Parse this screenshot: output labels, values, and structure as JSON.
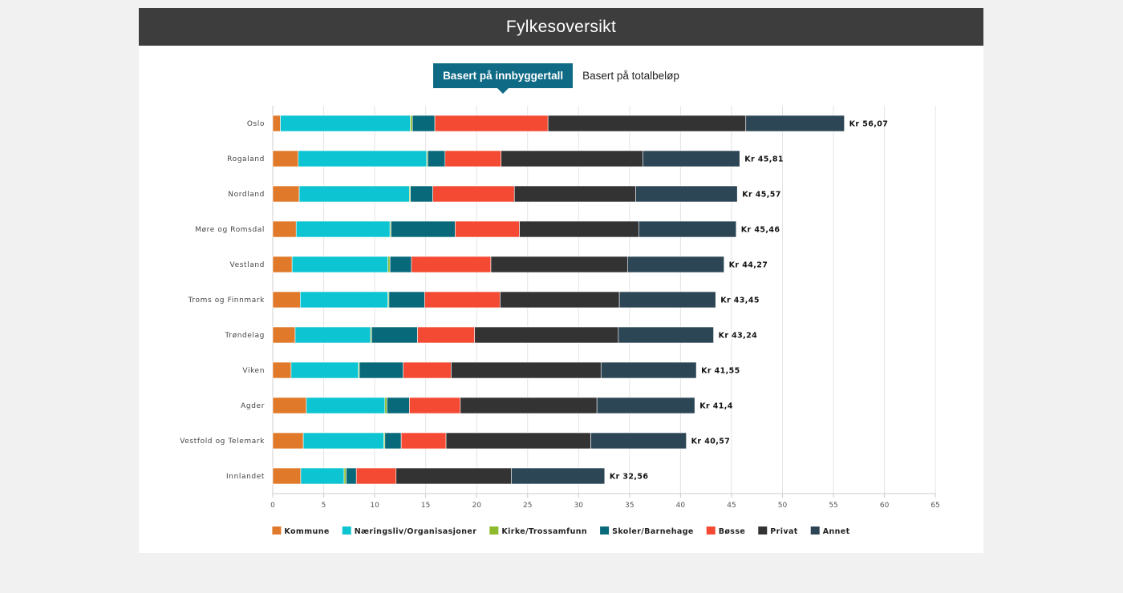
{
  "header": {
    "title": "Fylkesoversikt"
  },
  "tabs": [
    {
      "label": "Basert på innbyggertall",
      "active": true
    },
    {
      "label": "Basert på totalbeløp",
      "active": false
    }
  ],
  "chart_data": {
    "type": "bar",
    "orientation": "horizontal",
    "stacked": true,
    "categories": [
      "Oslo",
      "Rogaland",
      "Nordland",
      "Møre og Romsdal",
      "Vestland",
      "Troms og Finnmark",
      "Trøndelag",
      "Viken",
      "Agder",
      "Vestfold og Telemark",
      "Innlandet"
    ],
    "series": [
      {
        "name": "Kommune",
        "color": "#e07a2a",
        "values": [
          0.75,
          2.5,
          2.6,
          2.3,
          1.9,
          2.7,
          2.2,
          1.8,
          3.3,
          3.0,
          2.75
        ]
      },
      {
        "name": "Næringsliv/Organisasjoner",
        "color": "#0cc4d2",
        "values": [
          12.75,
          12.6,
          10.8,
          9.2,
          9.4,
          8.6,
          7.4,
          6.6,
          7.7,
          7.9,
          4.25
        ]
      },
      {
        "name": "Kirke/Trossamfunn",
        "color": "#8dba2a",
        "values": [
          0.2,
          0.1,
          0.1,
          0.1,
          0.2,
          0.1,
          0.1,
          0.1,
          0.2,
          0.1,
          0.2
        ]
      },
      {
        "name": "Skoler/Barnehage",
        "color": "#08697a",
        "values": [
          2.2,
          1.7,
          2.2,
          6.3,
          2.1,
          3.5,
          4.5,
          4.3,
          2.2,
          1.6,
          1.0
        ]
      },
      {
        "name": "Bøsse",
        "color": "#f44a33",
        "values": [
          11.1,
          5.5,
          8.0,
          6.3,
          7.8,
          7.4,
          5.6,
          4.7,
          5.0,
          4.4,
          3.9
        ]
      },
      {
        "name": "Privat",
        "color": "#333333",
        "values": [
          19.4,
          13.9,
          11.9,
          11.7,
          13.4,
          11.7,
          14.1,
          14.7,
          13.4,
          14.2,
          11.3
        ]
      },
      {
        "name": "Annet",
        "color": "#2d4656",
        "values": [
          9.67,
          9.51,
          9.97,
          9.56,
          9.47,
          9.45,
          9.34,
          9.35,
          9.6,
          9.37,
          9.16
        ]
      }
    ],
    "totals": [
      "Kr 56,07",
      "Kr 45,81",
      "Kr 45,57",
      "Kr 45,46",
      "Kr 44,27",
      "Kr 43,45",
      "Kr 43,24",
      "Kr 41,55",
      "Kr 41,4",
      "Kr 40,57",
      "Kr 32,56"
    ],
    "total_values": [
      56.07,
      45.81,
      45.57,
      45.46,
      44.27,
      43.45,
      43.24,
      41.55,
      41.4,
      40.57,
      32.56
    ],
    "xticks": [
      0,
      5,
      10,
      15,
      20,
      25,
      30,
      35,
      40,
      45,
      50,
      55,
      60,
      65
    ],
    "xlim": [
      0,
      65
    ],
    "grid": true,
    "legend_position": "bottom"
  }
}
